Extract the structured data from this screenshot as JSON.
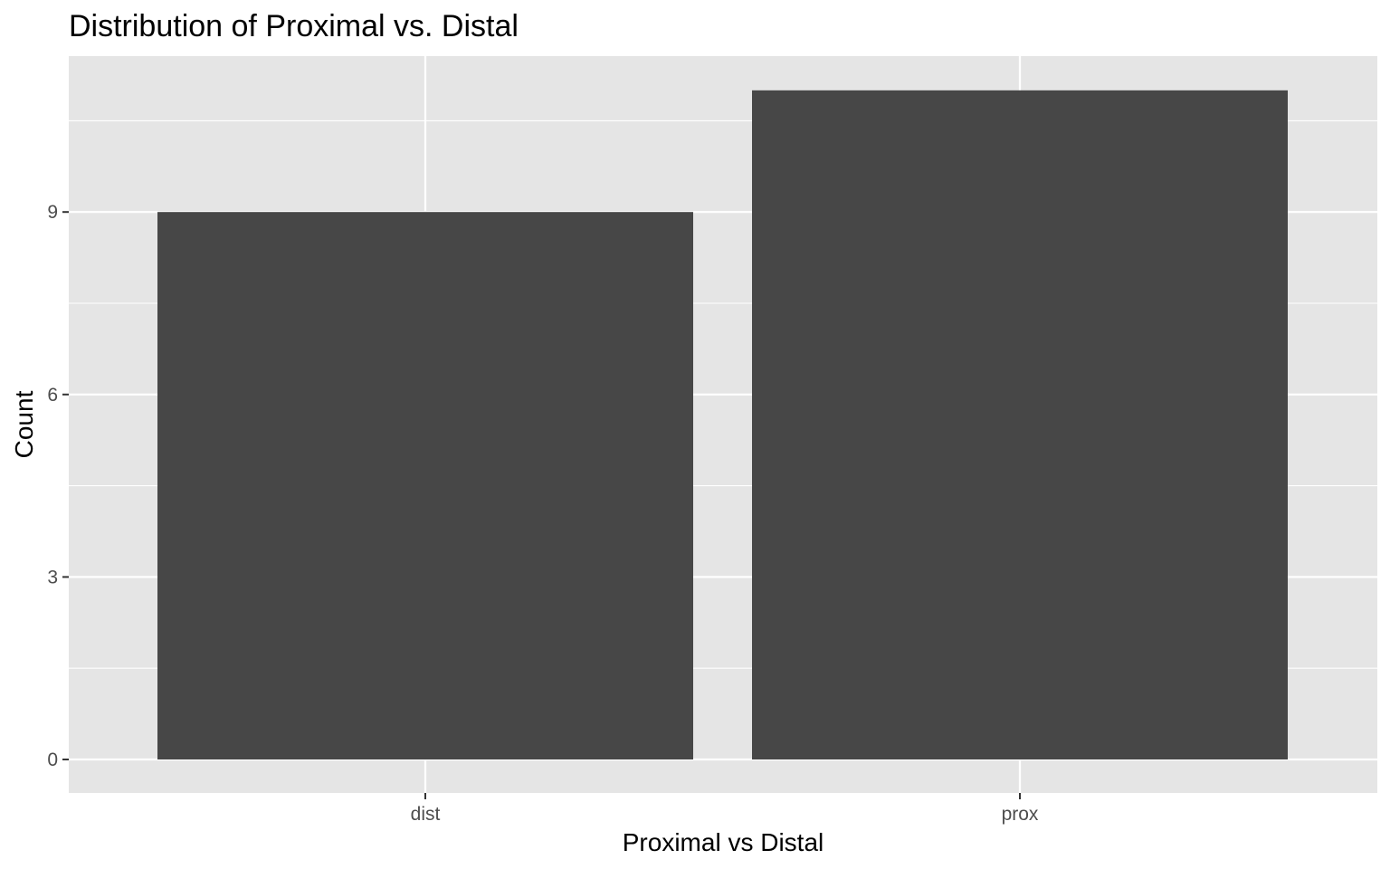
{
  "chart_data": {
    "type": "bar",
    "title": "Distribution of Proximal vs. Distal",
    "xlabel": "Proximal vs Distal",
    "ylabel": "Count",
    "categories": [
      "dist",
      "prox"
    ],
    "values": [
      9,
      11
    ],
    "ylim": [
      0,
      11.55
    ],
    "yticks": [
      0,
      3,
      6,
      9
    ],
    "grid": true,
    "legend": "none",
    "colors": {
      "panel_background": "#e5e5e5",
      "grid": "#ffffff",
      "bar_fill": "#474747",
      "tick_text": "#4d4d4d",
      "text": "#000000"
    }
  }
}
